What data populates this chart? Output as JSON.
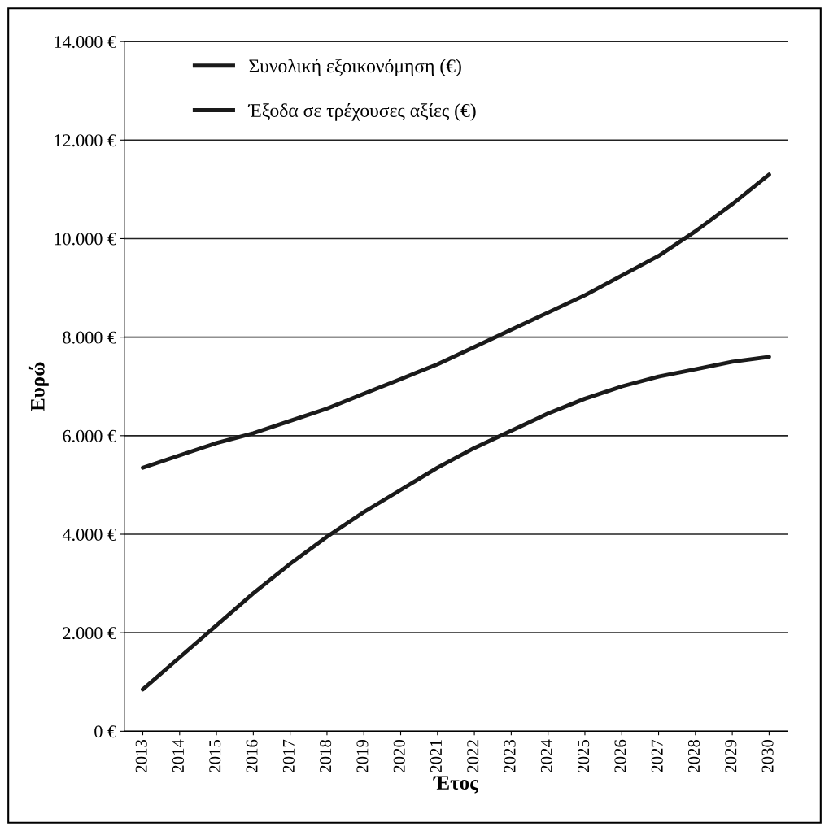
{
  "chart_data": {
    "type": "line",
    "xlabel": "Έτος",
    "ylabel": "Ευρώ",
    "categories": [
      "2013",
      "2014",
      "2015",
      "2016",
      "2017",
      "2018",
      "2019",
      "2020",
      "2021",
      "2022",
      "2023",
      "2024",
      "2025",
      "2026",
      "2027",
      "2028",
      "2029",
      "2030"
    ],
    "series": [
      {
        "name": "Συνολική εξοικονόμηση (€)",
        "color": "#1a1a1a",
        "values": [
          850,
          1500,
          2150,
          2800,
          3400,
          3950,
          4450,
          4900,
          5350,
          5750,
          6100,
          6450,
          6750,
          7000,
          7200,
          7350,
          7500,
          7600
        ]
      },
      {
        "name": "Έξοδα σε τρέχουσες αξίες (€)",
        "color": "#1a1a1a",
        "values": [
          5350,
          5600,
          5850,
          6050,
          6300,
          6550,
          6850,
          7150,
          7450,
          7800,
          8150,
          8500,
          8850,
          9250,
          9650,
          10150,
          10700,
          11300
        ]
      }
    ],
    "ylim": [
      0,
      14000
    ],
    "yticks": [
      {
        "value": 0,
        "label": "0 €"
      },
      {
        "value": 2000,
        "label": "2.000 €"
      },
      {
        "value": 4000,
        "label": "4.000 €"
      },
      {
        "value": 6000,
        "label": "6.000 €"
      },
      {
        "value": 8000,
        "label": "8.000 €"
      },
      {
        "value": 10000,
        "label": "10.000 €"
      },
      {
        "value": 12000,
        "label": "12.000 €"
      },
      {
        "value": 14000,
        "label": "14.000 €"
      }
    ],
    "grid": "y",
    "legend": "top left",
    "marker": "none",
    "line_style": "solid"
  }
}
